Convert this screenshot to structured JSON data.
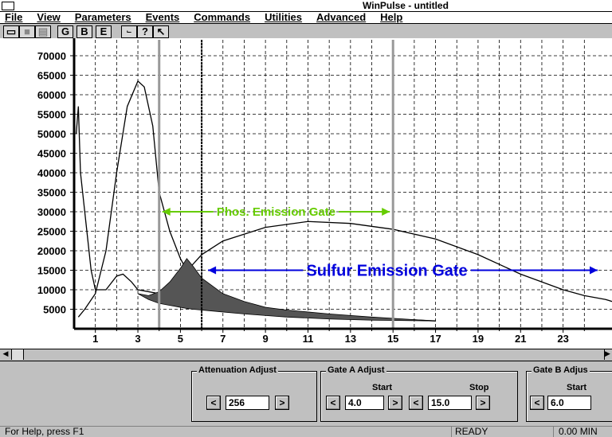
{
  "window": {
    "title": "WinPulse - untitled"
  },
  "menu": [
    "File",
    "View",
    "Parameters",
    "Events",
    "Commands",
    "Utilities",
    "Advanced",
    "Help"
  ],
  "toolbar": [
    "G",
    "B",
    "E"
  ],
  "controls": {
    "dec": "<",
    "inc": ">",
    "attenuation": {
      "title": "Attenuation Adjust",
      "value": "256"
    },
    "gate_a": {
      "title": "Gate A Adjust",
      "start": "Start",
      "stop": "Stop"
    },
    "gate_b": {
      "title": "Gate B Adjus",
      "start": "Start"
    }
  },
  "status": {
    "help": "For Help, press F1",
    "state": "READY",
    "time": "0.00 MIN"
  },
  "chart_data": {
    "type": "line",
    "xlim": [
      0,
      25.3
    ],
    "ylim": [
      0,
      70000
    ],
    "xticks": [
      1,
      3,
      5,
      7,
      9,
      11,
      13,
      15,
      17,
      19,
      21,
      23
    ],
    "xminor_ticks": [
      2,
      4,
      6,
      8,
      10,
      12,
      14,
      16,
      18,
      20,
      22,
      24
    ],
    "yticks": [
      5000,
      10000,
      15000,
      20000,
      25000,
      30000,
      35000,
      40000,
      45000,
      50000,
      55000,
      60000,
      65000,
      70000
    ],
    "grid": true,
    "gate_lines": [
      {
        "value": 4,
        "label": "4.0"
      },
      {
        "value": 15,
        "label": "15.0"
      },
      {
        "value": 6,
        "label": "6.0"
      }
    ],
    "annotations": [
      {
        "text": "Phos. Emission Gate",
        "y": 30000,
        "color": "#66cc00"
      },
      {
        "text": "Sulfur Emission Gate",
        "y": 15000,
        "color": "#0000dd"
      }
    ],
    "series": [
      {
        "color": "#000000",
        "x": [
          0.2,
          0.5,
          1,
          1.5,
          2,
          2.5,
          3,
          3.3,
          3.7,
          4,
          4.5,
          5,
          5.5,
          6,
          7,
          8,
          10,
          12,
          15,
          17
        ],
        "values": [
          3000,
          5000,
          9000,
          20000,
          40000,
          57000,
          63500,
          62000,
          52000,
          35000,
          25000,
          18000,
          13000,
          10000,
          7500,
          6000,
          4500,
          3500,
          2500,
          2000
        ]
      },
      {
        "color": "#000000",
        "x": [
          0.1,
          0.2,
          0.3,
          0.5,
          0.8,
          1,
          1.5,
          2,
          2.3,
          2.7,
          3,
          4,
          5,
          5.5,
          6,
          7,
          9,
          11,
          13,
          15,
          17,
          19,
          21,
          23,
          24,
          25,
          25.3
        ],
        "values": [
          50000,
          57000,
          40000,
          30000,
          15000,
          10000,
          10000,
          13500,
          14000,
          12000,
          10000,
          9000,
          12000,
          16000,
          19000,
          22500,
          26000,
          27500,
          27000,
          25500,
          23000,
          19000,
          14000,
          10000,
          8500,
          7500,
          7000
        ]
      },
      {
        "color": "#555555",
        "x": [
          3,
          3.5,
          4,
          4.5,
          5,
          5.3,
          5.6,
          6,
          7,
          8,
          9,
          10,
          12,
          14,
          17
        ],
        "values": [
          9000,
          8500,
          9500,
          12000,
          15500,
          18000,
          16000,
          13000,
          9000,
          7000,
          5500,
          4800,
          3800,
          3000,
          2000
        ],
        "base": [
          9000,
          7500,
          6500,
          6000,
          5500,
          5200,
          5000,
          4800,
          4300,
          3800,
          3400,
          3000,
          2500,
          2200,
          2000
        ]
      }
    ]
  }
}
